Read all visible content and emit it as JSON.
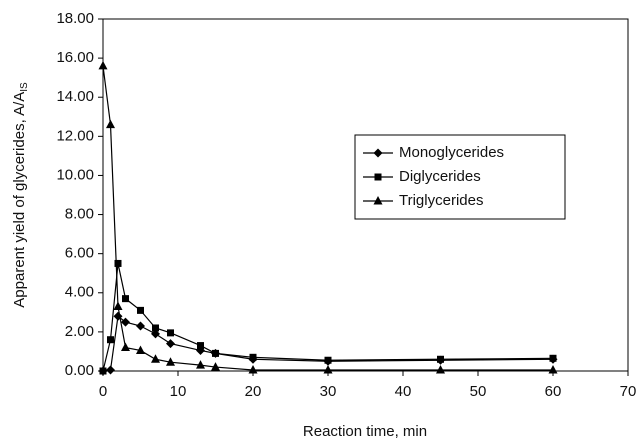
{
  "chart_data": {
    "type": "line",
    "x_label": "Reaction time, min",
    "y_label": "Apparent yield of glycerides, A/A",
    "y_label_sub": "IS",
    "x": [
      0,
      1,
      2,
      3,
      5,
      7,
      9,
      13,
      15,
      20,
      30,
      45,
      60
    ],
    "series": [
      {
        "name": "Monoglycerides",
        "color": "#000000",
        "marker": "diamond",
        "values": [
          0,
          0.05,
          2.8,
          2.5,
          2.3,
          1.9,
          1.4,
          1.05,
          0.9,
          0.6,
          0.5,
          0.55,
          0.6
        ]
      },
      {
        "name": "Diglycerides",
        "color": "#000000",
        "marker": "square",
        "values": [
          0,
          1.6,
          5.5,
          3.7,
          3.1,
          2.2,
          1.95,
          1.3,
          0.9,
          0.7,
          0.55,
          0.6,
          0.65
        ]
      },
      {
        "name": "Triglycerides",
        "color": "#000000",
        "marker": "triangle",
        "values": [
          15.6,
          12.6,
          3.3,
          1.2,
          1.05,
          0.6,
          0.45,
          0.3,
          0.2,
          0.05,
          0.05,
          0.05,
          0.05
        ]
      }
    ],
    "xlim": [
      0,
      70
    ],
    "xticks": [
      0,
      10,
      20,
      30,
      40,
      50,
      60,
      70
    ],
    "ylim": [
      0,
      18
    ],
    "yticks": [
      {
        "value": 0,
        "label": "0.00"
      },
      {
        "value": 2,
        "label": "2.00"
      },
      {
        "value": 4,
        "label": "4.00"
      },
      {
        "value": 6,
        "label": "6.00"
      },
      {
        "value": 8,
        "label": "8.00"
      },
      {
        "value": 10,
        "label": "10.00"
      },
      {
        "value": 12,
        "label": "12.00"
      },
      {
        "value": 14,
        "label": "14.00"
      },
      {
        "value": 16,
        "label": "16.00"
      },
      {
        "value": 18,
        "label": "18.00"
      }
    ],
    "grid": false,
    "legend": "right"
  }
}
